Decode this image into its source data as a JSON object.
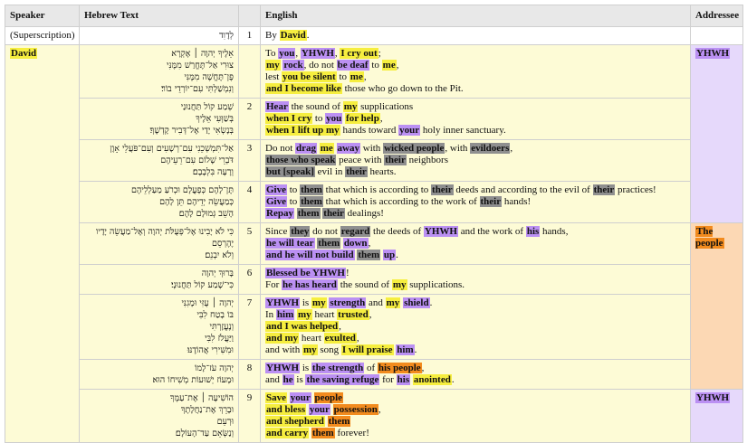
{
  "header_color": "#e8e8e8",
  "row_color": "#fdfbd6",
  "plain_color": "#ffffff",
  "highlight_colors": {
    "y": "#f6ee3f",
    "p": "#bb90f3",
    "g": "#8f8f8f",
    "o": "#f28b1e"
  },
  "table": {
    "headers": [
      "Speaker",
      "Hebrew Text",
      "",
      "English",
      "Addressee"
    ],
    "rows": [
      {
        "speaker": {
          "text": "(Superscription)"
        },
        "hebrew": [
          "לְדָוִד"
        ],
        "verse": 1,
        "english": [
          [
            "By ",
            {
              "text": "David",
              "hl": "y"
            },
            "."
          ]
        ],
        "addressee": {
          "text": ""
        }
      },
      {
        "speaker": {
          "text": "David",
          "hl": "y"
        },
        "hebrew": [
          "אֵלֶיךָ יְהוָה ׀ אֶקְרָא",
          "צוּרִי אַל־תֶּחֱרַשׁ מִמֶּנִּי",
          "פֶּן־תֶּחֱשֶׁה מִמֶּנִּי",
          "וְנִמְשַׁלְתִּי עִם־יוֹרְדֵי בוֹר׃"
        ],
        "verse": null,
        "english": [
          [
            "To ",
            {
              "text": "you",
              "hl": "p"
            },
            ", ",
            {
              "text": "YHWH",
              "hl": "p"
            },
            ", ",
            {
              "text": "I cry out",
              "hl": "y"
            },
            ";"
          ],
          [
            {
              "text": "my",
              "hl": "y"
            },
            " ",
            {
              "text": "rock",
              "hl": "p"
            },
            ", do not ",
            {
              "text": "be deaf",
              "hl": "p"
            },
            " to ",
            {
              "text": "me",
              "hl": "y"
            },
            ","
          ],
          [
            "lest ",
            {
              "text": "you be silent",
              "hl": "y"
            },
            " to ",
            {
              "text": "me",
              "hl": "y"
            },
            ","
          ],
          [
            {
              "text": "and I become like",
              "hl": "y"
            },
            " those who go down to the Pit."
          ]
        ],
        "addressee": {
          "text": "YHWH",
          "hl": "p",
          "color": "#e6d9fb"
        }
      },
      {
        "speaker": null,
        "hebrew": [
          "שְׁמַע קוֹל תַּחֲנוּנַי",
          "בְּשַׁוְּעִי אֵלֶיךָ",
          "בְּנָשְׂאִי יָדַי אֶל־דְּבִיר קָדְשֶׁךָ׃"
        ],
        "verse": 2,
        "english": [
          [
            {
              "text": "Hear",
              "hl": "p"
            },
            " the sound of ",
            {
              "text": "my",
              "hl": "y"
            },
            " supplications"
          ],
          [
            {
              "text": "when I cry",
              "hl": "y"
            },
            " to ",
            {
              "text": "you",
              "hl": "p"
            },
            " ",
            {
              "text": "for help",
              "hl": "y"
            },
            ","
          ],
          [
            {
              "text": "when I lift up my",
              "hl": "y"
            },
            " hands toward ",
            {
              "text": "your",
              "hl": "p"
            },
            " holy inner sanctuary."
          ]
        ],
        "addressee": null
      },
      {
        "speaker": null,
        "hebrew": [
          "אַל־תִּמְשְׁכֵנִי עִם־רְשָׁעִים וְעִם־פֹּעֲלֵי אָוֶן",
          "דֹּבְרֵי שָׁלוֹם עִם־רֵעֵיהֶם",
          "וְרָעָה בִּלְבָבָם׃"
        ],
        "verse": 3,
        "english": [
          [
            "Do not ",
            {
              "text": "drag",
              "hl": "p"
            },
            " ",
            {
              "text": "me",
              "hl": "y"
            },
            " ",
            {
              "text": "away",
              "hl": "p"
            },
            " with ",
            {
              "text": "wicked people",
              "hl": "g"
            },
            ", with ",
            {
              "text": "evildoers",
              "hl": "g"
            },
            ","
          ],
          [
            {
              "text": "those who speak",
              "hl": "g"
            },
            " peace with ",
            {
              "text": "their",
              "hl": "g"
            },
            " neighbors"
          ],
          [
            {
              "text": "but [speak]",
              "hl": "g"
            },
            " evil in ",
            {
              "text": "their",
              "hl": "g"
            },
            " hearts."
          ]
        ],
        "addressee": null
      },
      {
        "speaker": null,
        "hebrew": [
          "תֶּן־לָהֶם כְּפָעֳלָם וּכְרֹעַ מַעַלְלֵיהֶם",
          "כְּמַעֲשֵׂה יְדֵיהֶם תֵּן לָהֶם",
          "הָשֵׁב גְּמוּלָם לָהֶם׃"
        ],
        "verse": 4,
        "english": [
          [
            {
              "text": "Give",
              "hl": "p"
            },
            " to ",
            {
              "text": "them",
              "hl": "g"
            },
            " that which is according to ",
            {
              "text": "their",
              "hl": "g"
            },
            " deeds and according to the evil of ",
            {
              "text": "their",
              "hl": "g"
            },
            " practices!"
          ],
          [
            {
              "text": "Give",
              "hl": "p"
            },
            " to ",
            {
              "text": "them",
              "hl": "g"
            },
            " that which is according to the work of ",
            {
              "text": "their",
              "hl": "g"
            },
            " hands!"
          ],
          [
            {
              "text": "Repay",
              "hl": "p"
            },
            " ",
            {
              "text": "them",
              "hl": "g"
            },
            " ",
            {
              "text": "their",
              "hl": "g"
            },
            " dealings!"
          ]
        ],
        "addressee": null
      },
      {
        "speaker": null,
        "hebrew": [
          "כִּי לֹא יָבִינוּ אֶל־פְּעֻלֹּת יְהוָה וְאֶל־מַעֲשֵׂה יָדָיו",
          "יֶהֶרְסֵם",
          "וְלֹא יִבְנֵם׃"
        ],
        "verse": 5,
        "english": [
          [
            "Since ",
            {
              "text": "they",
              "hl": "g"
            },
            " do not ",
            {
              "text": "regard",
              "hl": "g"
            },
            " the deeds of ",
            {
              "text": "YHWH",
              "hl": "p"
            },
            " and the work of ",
            {
              "text": "his",
              "hl": "p"
            },
            " hands,"
          ],
          [
            {
              "text": "he will tear",
              "hl": "p"
            },
            " ",
            {
              "text": "them",
              "hl": "g"
            },
            " ",
            {
              "text": "down",
              "hl": "p"
            },
            ","
          ],
          [
            {
              "text": "and he will not build",
              "hl": "p"
            },
            " ",
            {
              "text": "them",
              "hl": "g"
            },
            " ",
            {
              "text": "up",
              "hl": "p"
            },
            "."
          ]
        ],
        "addressee": {
          "text": "The people",
          "hl": "o",
          "color": "#fcd8b4"
        }
      },
      {
        "speaker": null,
        "hebrew": [
          "בָּרוּךְ יְהוָה",
          "כִּי־שָׁמַע קוֹל תַּחֲנוּנָי׃"
        ],
        "verse": 6,
        "english": [
          [
            {
              "text": "Blessed be YHWH",
              "hl": "p"
            },
            "!"
          ],
          [
            "For ",
            {
              "text": "he has heard",
              "hl": "p"
            },
            " the sound of ",
            {
              "text": "my",
              "hl": "y"
            },
            " supplications."
          ]
        ],
        "addressee": null
      },
      {
        "speaker": null,
        "hebrew": [
          "יְהוָה ׀ עֻזִּי וּמָגִנִּי",
          "בּוֹ בָטַח לִבִּי",
          "וְנֶעֱזָרְתִּי",
          "וַיַּעֲלֹז לִבִּי",
          "וּמִשִּׁירִי אֲהוֹדֶנּוּ׃"
        ],
        "verse": 7,
        "english": [
          [
            {
              "text": "YHWH",
              "hl": "p"
            },
            " is ",
            {
              "text": "my",
              "hl": "y"
            },
            " ",
            {
              "text": "strength",
              "hl": "p"
            },
            " and ",
            {
              "text": "my",
              "hl": "y"
            },
            " ",
            {
              "text": "shield",
              "hl": "p"
            },
            "."
          ],
          [
            "In ",
            {
              "text": "him",
              "hl": "p"
            },
            " ",
            {
              "text": "my",
              "hl": "y"
            },
            " heart ",
            {
              "text": "trusted",
              "hl": "y"
            },
            ","
          ],
          [
            {
              "text": "and I was helped",
              "hl": "y"
            },
            ","
          ],
          [
            {
              "text": "and my",
              "hl": "y"
            },
            " heart ",
            {
              "text": "exulted",
              "hl": "y"
            },
            ","
          ],
          [
            "and with ",
            {
              "text": "my",
              "hl": "y"
            },
            " song ",
            {
              "text": "I will praise",
              "hl": "y"
            },
            " ",
            {
              "text": "him",
              "hl": "p"
            },
            "."
          ]
        ],
        "addressee": null
      },
      {
        "speaker": null,
        "hebrew": [
          "יְהוָה עֹז־לָמוֹ",
          "וּמָעוֹז יְשׁוּעוֹת מְשִׁיחוֹ הוּא׃"
        ],
        "verse": 8,
        "english": [
          [
            {
              "text": "YHWH",
              "hl": "p"
            },
            " is ",
            {
              "text": "the strength",
              "hl": "p"
            },
            " of ",
            {
              "text": "his people",
              "hl": "o"
            },
            ","
          ],
          [
            "and ",
            {
              "text": "he",
              "hl": "p"
            },
            " is ",
            {
              "text": "the saving refuge",
              "hl": "p"
            },
            " for ",
            {
              "text": "his",
              "hl": "p"
            },
            " ",
            {
              "text": "anointed",
              "hl": "y"
            },
            "."
          ]
        ],
        "addressee": null
      },
      {
        "speaker": null,
        "hebrew": [
          "הוֹשִׁיעָה ׀ אֶת־עַמֶּךָ",
          "וּבָרֵךְ אֶת־נַחֲלָתֶךָ",
          "וּרְעֵם",
          "וְנַשְּׂאֵם עַד־הָעוֹלָם׃"
        ],
        "verse": 9,
        "english": [
          [
            {
              "text": "Save",
              "hl": "y"
            },
            " ",
            {
              "text": "your",
              "hl": "p"
            },
            " ",
            {
              "text": "people",
              "hl": "o"
            }
          ],
          [
            {
              "text": "and bless",
              "hl": "y"
            },
            " ",
            {
              "text": "your",
              "hl": "p"
            },
            " ",
            {
              "text": "possession",
              "hl": "o"
            },
            ","
          ],
          [
            {
              "text": "and shepherd",
              "hl": "y"
            },
            " ",
            {
              "text": "them",
              "hl": "o"
            }
          ],
          [
            {
              "text": "and carry",
              "hl": "y"
            },
            " ",
            {
              "text": "them",
              "hl": "o"
            },
            " forever!"
          ]
        ],
        "addressee": {
          "text": "YHWH",
          "hl": "p",
          "color": "#e6d9fb"
        }
      }
    ]
  }
}
